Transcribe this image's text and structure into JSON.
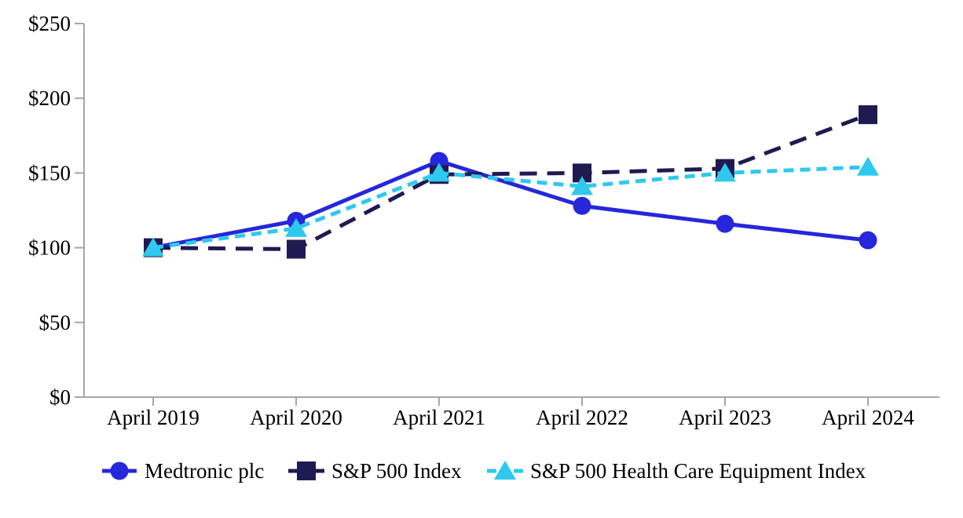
{
  "chart_data": {
    "type": "line",
    "title": "",
    "x_categories": [
      "April 2019",
      "April 2020",
      "April 2021",
      "April 2022",
      "April 2023",
      "April 2024"
    ],
    "y_axis": {
      "tick_labels": [
        "$0",
        "$50",
        "$100",
        "$150",
        "$200",
        "$250"
      ],
      "min": 0,
      "max": 250,
      "tick_step": 50,
      "unit": "$"
    },
    "series": [
      {
        "name": "Medtronic plc",
        "marker": "circle",
        "line_style": "solid",
        "color": "#2626DB",
        "values": [
          100,
          118,
          158,
          128,
          116,
          105
        ]
      },
      {
        "name": "S&P 500 Index",
        "marker": "square",
        "line_style": "long-dash",
        "color": "#201A52",
        "values": [
          100,
          99,
          149,
          150,
          153,
          189
        ]
      },
      {
        "name": "S&P 500 Health Care Equipment Index",
        "marker": "triangle",
        "line_style": "dash",
        "color": "#2FC8EF",
        "values": [
          100,
          113,
          150,
          141,
          150,
          154
        ]
      }
    ],
    "legend_position": "bottom",
    "grid": false,
    "axis_color": "#A6A6A6",
    "text_color": "#000000",
    "background_color": "#FFFFFF"
  }
}
